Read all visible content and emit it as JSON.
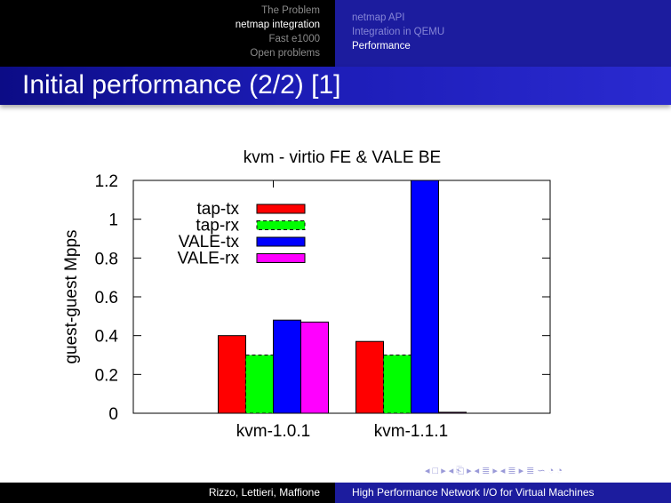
{
  "header": {
    "sections": [
      {
        "label": "The Problem",
        "active": false
      },
      {
        "label": "netmap integration",
        "active": true
      },
      {
        "label": "Fast e1000",
        "active": false
      },
      {
        "label": "Open problems",
        "active": false
      }
    ],
    "subsections": [
      {
        "label": "netmap API",
        "active": false
      },
      {
        "label": "Integration in QEMU",
        "active": false
      },
      {
        "label": "Performance",
        "active": true
      }
    ]
  },
  "slide": {
    "title": "Initial performance (2/2) [1]"
  },
  "chart_data": {
    "type": "bar",
    "title": "kvm - virtio FE & VALE BE",
    "xlabel": "",
    "ylabel": "guest-guest Mpps",
    "categories": [
      "kvm-1.0.1",
      "kvm-1.1.1"
    ],
    "ylim": [
      0,
      1.2
    ],
    "yticks": [
      "0",
      "0.2",
      "0.4",
      "0.6",
      "0.8",
      "1",
      "1.2"
    ],
    "grid": false,
    "legend_position": "top-left",
    "series": [
      {
        "name": "tap-tx",
        "values": [
          0.4,
          0.37
        ],
        "color": "#ff0000",
        "dashed": false
      },
      {
        "name": "tap-rx",
        "values": [
          0.3,
          0.3
        ],
        "color": "#00ff00",
        "dashed": true
      },
      {
        "name": "VALE-tx",
        "values": [
          0.48,
          1.2
        ],
        "color": "#0000ff",
        "dashed": false
      },
      {
        "name": "VALE-rx",
        "values": [
          0.47,
          0.005
        ],
        "color": "#ff00ff",
        "dashed": false
      }
    ]
  },
  "navigation": {
    "symbols": [
      "◂",
      "□",
      "▸",
      "◂",
      "⎗",
      "▸",
      "◂",
      "≣",
      "▸",
      "◂",
      "≣",
      "▸",
      "≣",
      "∽",
      "◔",
      "◔"
    ]
  },
  "footer": {
    "authors": "Rizzo, Lettieri, Maffione",
    "talk_title": "High Performance Network I/O for Virtual Machines"
  }
}
